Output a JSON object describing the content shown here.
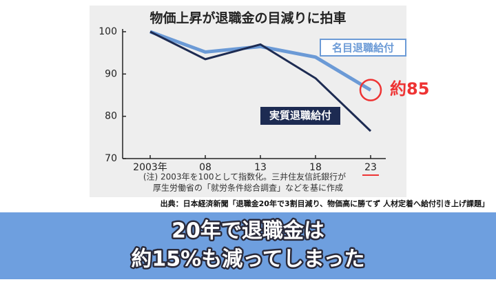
{
  "chart_data": {
    "type": "line",
    "title": "物価上昇が退職金の目減りに拍車",
    "categories": [
      "2003年",
      "08",
      "13",
      "18",
      "23"
    ],
    "series": [
      {
        "name": "名目退職給付",
        "color": "#6b9ad6",
        "values": [
          100,
          95.2,
          96.5,
          94,
          86.2
        ]
      },
      {
        "name": "実質退職給付",
        "color": "#1d2b52",
        "values": [
          100,
          93.5,
          97,
          89,
          76.5
        ]
      }
    ],
    "ylim": [
      70,
      100
    ],
    "yticks": [
      70,
      80,
      90,
      100
    ],
    "annotation": "約85",
    "note": [
      "(注) 2003年を100として指数化。三井住友信託銀行が",
      "厚生労働省の「就労条件総合調査」などを基に作成"
    ],
    "source": "出典：日本経済新聞「退職金20年で3割目減り、物価高に勝てず 人材定着へ給付引き上げ課題」"
  },
  "caption": [
    "20年で退職金は",
    "約15%も減ってしまった"
  ]
}
